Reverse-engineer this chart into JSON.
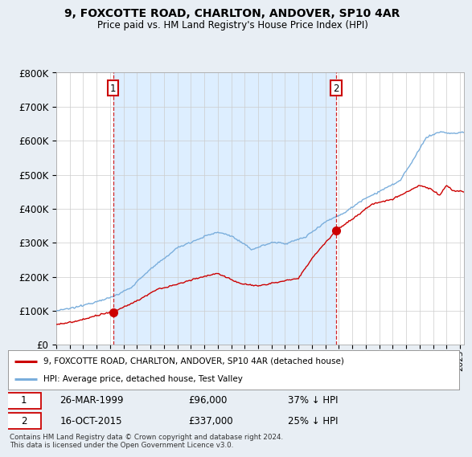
{
  "title": "9, FOXCOTTE ROAD, CHARLTON, ANDOVER, SP10 4AR",
  "subtitle": "Price paid vs. HM Land Registry's House Price Index (HPI)",
  "legend_line1": "9, FOXCOTTE ROAD, CHARLTON, ANDOVER, SP10 4AR (detached house)",
  "legend_line2": "HPI: Average price, detached house, Test Valley",
  "annotation1_date": "26-MAR-1999",
  "annotation1_price": "£96,000",
  "annotation1_hpi": "37% ↓ HPI",
  "annotation1_year": 1999.23,
  "annotation1_value": 96000,
  "annotation2_date": "16-OCT-2015",
  "annotation2_price": "£337,000",
  "annotation2_hpi": "25% ↓ HPI",
  "annotation2_year": 2015.79,
  "annotation2_value": 337000,
  "footer": "Contains HM Land Registry data © Crown copyright and database right 2024.\nThis data is licensed under the Open Government Licence v3.0.",
  "hpi_color": "#7aaedc",
  "price_color": "#cc0000",
  "background_color": "#e8eef4",
  "plot_bg_color": "#ffffff",
  "highlight_bg_color": "#ddeeff",
  "vline_color": "#cc0000",
  "ylim": [
    0,
    800000
  ],
  "xlim_start": 1995.0,
  "xlim_end": 2025.3
}
